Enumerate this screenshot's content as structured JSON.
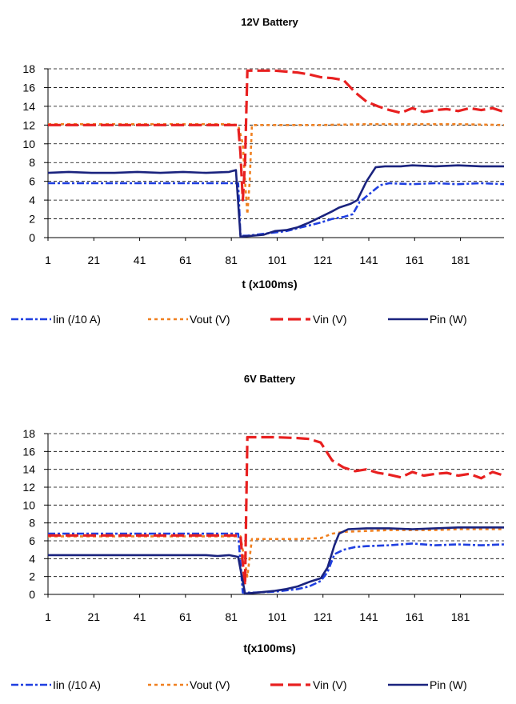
{
  "chart_data": [
    {
      "type": "line",
      "title": "12V Battery",
      "xlabel": "t (x100ms)",
      "ylabel": "",
      "ylim": [
        0,
        18
      ],
      "xlim": [
        1,
        200
      ],
      "y_ticks": [
        0,
        2,
        4,
        6,
        8,
        10,
        12,
        14,
        16,
        18
      ],
      "x_ticks": [
        1,
        21,
        41,
        61,
        81,
        101,
        121,
        141,
        161,
        181
      ],
      "grid": "horizontal dashed",
      "legend_position": "bottom",
      "series": [
        {
          "name": "Iin (/10 A)",
          "color": "#1f3fe0",
          "style": "dashdot",
          "points": [
            [
              1,
              5.8
            ],
            [
              20,
              5.8
            ],
            [
              40,
              5.8
            ],
            [
              60,
              5.8
            ],
            [
              80,
              5.8
            ],
            [
              84,
              5.8
            ],
            [
              85,
              0.2
            ],
            [
              88,
              0.2
            ],
            [
              95,
              0.4
            ],
            [
              105,
              0.7
            ],
            [
              110,
              1.0
            ],
            [
              115,
              1.3
            ],
            [
              120,
              1.6
            ],
            [
              125,
              2.0
            ],
            [
              130,
              2.2
            ],
            [
              134,
              2.5
            ],
            [
              137,
              3.8
            ],
            [
              142,
              4.8
            ],
            [
              146,
              5.6
            ],
            [
              150,
              5.8
            ],
            [
              160,
              5.7
            ],
            [
              170,
              5.8
            ],
            [
              180,
              5.7
            ],
            [
              190,
              5.8
            ],
            [
              200,
              5.7
            ]
          ]
        },
        {
          "name": "Vout (V)",
          "color": "#f08020",
          "style": "dotted",
          "points": [
            [
              1,
              12.1
            ],
            [
              20,
              12.1
            ],
            [
              40,
              12.1
            ],
            [
              60,
              12.1
            ],
            [
              80,
              12.1
            ],
            [
              84,
              12.0
            ],
            [
              86,
              10.0
            ],
            [
              87,
              6.0
            ],
            [
              88,
              2.5
            ],
            [
              89,
              6.0
            ],
            [
              90,
              12.0
            ],
            [
              100,
              12.0
            ],
            [
              120,
              12.0
            ],
            [
              140,
              12.1
            ],
            [
              160,
              12.1
            ],
            [
              180,
              12.1
            ],
            [
              200,
              12.0
            ]
          ]
        },
        {
          "name": "Vin (V)",
          "color": "#e82020",
          "style": "longdash",
          "points": [
            [
              1,
              12.0
            ],
            [
              20,
              12.0
            ],
            [
              40,
              12.0
            ],
            [
              60,
              12.0
            ],
            [
              80,
              12.0
            ],
            [
              84,
              12.0
            ],
            [
              85,
              9.0
            ],
            [
              86,
              4.0
            ],
            [
              87,
              8.0
            ],
            [
              88,
              17.8
            ],
            [
              100,
              17.8
            ],
            [
              110,
              17.6
            ],
            [
              115,
              17.4
            ],
            [
              120,
              17.1
            ],
            [
              125,
              17.0
            ],
            [
              130,
              16.8
            ],
            [
              135,
              15.5
            ],
            [
              140,
              14.5
            ],
            [
              145,
              14.0
            ],
            [
              150,
              13.6
            ],
            [
              155,
              13.3
            ],
            [
              160,
              13.8
            ],
            [
              165,
              13.4
            ],
            [
              170,
              13.6
            ],
            [
              175,
              13.7
            ],
            [
              180,
              13.5
            ],
            [
              185,
              13.8
            ],
            [
              190,
              13.6
            ],
            [
              195,
              13.8
            ],
            [
              200,
              13.4
            ]
          ]
        },
        {
          "name": "Pin (W)",
          "color": "#1a237e",
          "style": "solid",
          "points": [
            [
              1,
              6.9
            ],
            [
              10,
              7.0
            ],
            [
              20,
              6.9
            ],
            [
              30,
              6.9
            ],
            [
              40,
              7.0
            ],
            [
              50,
              6.9
            ],
            [
              60,
              7.0
            ],
            [
              70,
              6.9
            ],
            [
              80,
              7.0
            ],
            [
              83,
              7.2
            ],
            [
              85,
              0.1
            ],
            [
              90,
              0.2
            ],
            [
              95,
              0.3
            ],
            [
              100,
              0.7
            ],
            [
              105,
              0.8
            ],
            [
              110,
              1.1
            ],
            [
              115,
              1.6
            ],
            [
              120,
              2.2
            ],
            [
              125,
              2.8
            ],
            [
              128,
              3.2
            ],
            [
              133,
              3.6
            ],
            [
              136,
              4.0
            ],
            [
              140,
              6.0
            ],
            [
              144,
              7.5
            ],
            [
              148,
              7.6
            ],
            [
              155,
              7.6
            ],
            [
              160,
              7.7
            ],
            [
              170,
              7.6
            ],
            [
              180,
              7.7
            ],
            [
              190,
              7.6
            ],
            [
              200,
              7.6
            ]
          ]
        }
      ]
    },
    {
      "type": "line",
      "title": "6V Battery",
      "xlabel": "t(x100ms)",
      "ylabel": "",
      "ylim": [
        0,
        18
      ],
      "xlim": [
        1,
        200
      ],
      "y_ticks": [
        0,
        2,
        4,
        6,
        8,
        10,
        12,
        14,
        16,
        18
      ],
      "x_ticks": [
        1,
        21,
        41,
        61,
        81,
        101,
        121,
        141,
        161,
        181
      ],
      "grid": "horizontal dashed",
      "legend_position": "bottom",
      "series": [
        {
          "name": "Iin (/10 A)",
          "color": "#1f3fe0",
          "style": "dashdot",
          "points": [
            [
              1,
              6.8
            ],
            [
              20,
              6.8
            ],
            [
              40,
              6.8
            ],
            [
              60,
              6.8
            ],
            [
              80,
              6.8
            ],
            [
              84,
              6.8
            ],
            [
              86,
              0.2
            ],
            [
              90,
              0.2
            ],
            [
              100,
              0.3
            ],
            [
              110,
              0.6
            ],
            [
              115,
              0.9
            ],
            [
              120,
              1.5
            ],
            [
              123,
              2.5
            ],
            [
              126,
              4.5
            ],
            [
              130,
              5.0
            ],
            [
              135,
              5.3
            ],
            [
              140,
              5.4
            ],
            [
              150,
              5.5
            ],
            [
              160,
              5.7
            ],
            [
              170,
              5.5
            ],
            [
              180,
              5.6
            ],
            [
              190,
              5.5
            ],
            [
              200,
              5.6
            ]
          ]
        },
        {
          "name": "Vout (V)",
          "color": "#f08020",
          "style": "dotted",
          "points": [
            [
              1,
              6.5
            ],
            [
              20,
              6.5
            ],
            [
              40,
              6.5
            ],
            [
              60,
              6.5
            ],
            [
              80,
              6.5
            ],
            [
              85,
              6.5
            ],
            [
              87,
              3.5
            ],
            [
              88,
              2.0
            ],
            [
              90,
              6.2
            ],
            [
              100,
              6.2
            ],
            [
              110,
              6.2
            ],
            [
              120,
              6.3
            ],
            [
              125,
              6.8
            ],
            [
              130,
              7.0
            ],
            [
              140,
              7.1
            ],
            [
              150,
              7.2
            ],
            [
              160,
              7.2
            ],
            [
              170,
              7.2
            ],
            [
              180,
              7.3
            ],
            [
              190,
              7.3
            ],
            [
              200,
              7.3
            ]
          ]
        },
        {
          "name": "Vin (V)",
          "color": "#e82020",
          "style": "longdash",
          "points": [
            [
              1,
              6.6
            ],
            [
              20,
              6.6
            ],
            [
              40,
              6.6
            ],
            [
              60,
              6.6
            ],
            [
              80,
              6.6
            ],
            [
              85,
              6.6
            ],
            [
              86,
              3.5
            ],
            [
              87,
              1.0
            ],
            [
              88,
              17.6
            ],
            [
              100,
              17.6
            ],
            [
              110,
              17.5
            ],
            [
              115,
              17.4
            ],
            [
              120,
              17.0
            ],
            [
              125,
              15.0
            ],
            [
              130,
              14.2
            ],
            [
              135,
              13.8
            ],
            [
              140,
              14.0
            ],
            [
              145,
              13.6
            ],
            [
              150,
              13.4
            ],
            [
              155,
              13.1
            ],
            [
              160,
              13.7
            ],
            [
              165,
              13.3
            ],
            [
              170,
              13.5
            ],
            [
              175,
              13.6
            ],
            [
              180,
              13.3
            ],
            [
              185,
              13.5
            ],
            [
              190,
              13.0
            ],
            [
              195,
              13.7
            ],
            [
              200,
              13.3
            ]
          ]
        },
        {
          "name": "Pin (W)",
          "color": "#1a237e",
          "style": "solid",
          "points": [
            [
              1,
              4.4
            ],
            [
              20,
              4.4
            ],
            [
              40,
              4.4
            ],
            [
              60,
              4.4
            ],
            [
              70,
              4.4
            ],
            [
              75,
              4.3
            ],
            [
              80,
              4.4
            ],
            [
              84,
              4.2
            ],
            [
              87,
              0.1
            ],
            [
              92,
              0.2
            ],
            [
              100,
              0.4
            ],
            [
              105,
              0.6
            ],
            [
              110,
              0.9
            ],
            [
              115,
              1.4
            ],
            [
              120,
              1.8
            ],
            [
              123,
              3.0
            ],
            [
              126,
              5.5
            ],
            [
              128,
              6.8
            ],
            [
              132,
              7.3
            ],
            [
              140,
              7.4
            ],
            [
              150,
              7.4
            ],
            [
              160,
              7.3
            ],
            [
              170,
              7.4
            ],
            [
              180,
              7.5
            ],
            [
              190,
              7.5
            ],
            [
              200,
              7.5
            ]
          ]
        }
      ]
    }
  ]
}
